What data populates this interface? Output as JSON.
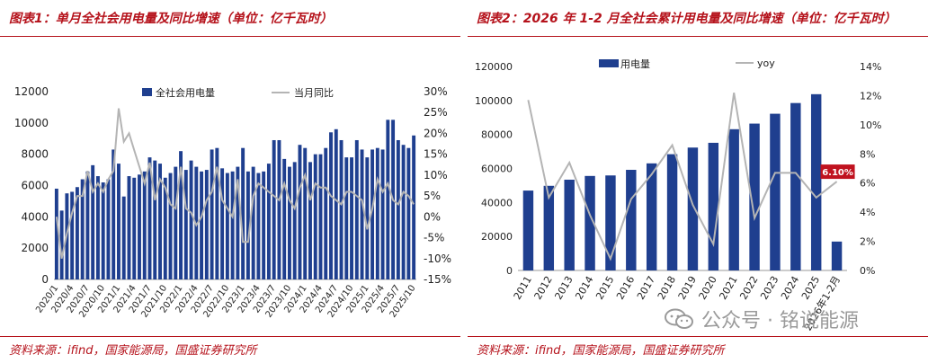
{
  "left_panel": {
    "title": "图表1：单月全社会用电量及同比增速（单位：亿千瓦时）",
    "source": "资料来源：ifind，国家能源局，国盛证券研究所"
  },
  "right_panel": {
    "title": "图表2：2026 年 1-2 月全社会累计用电量及同比增速（单位：亿千瓦时）",
    "source": "资料来源：ifind，国家能源局，国盛证券研究所"
  },
  "watermark": {
    "text": "公众号 · 铭说能源"
  },
  "colors": {
    "bar": "#1f3f8f",
    "line": "#b4b4b4",
    "accent": "#b5121b",
    "label_bg": "#c0121f"
  },
  "chart_data": [
    {
      "type": "bar",
      "combo_line": true,
      "legend": [
        "全社会用电量",
        "当月同比"
      ],
      "legend_position": "top",
      "categories": [
        "2020/1",
        "2020/2",
        "2020/3",
        "2020/4",
        "2020/5",
        "2020/6",
        "2020/7",
        "2020/8",
        "2020/9",
        "2020/10",
        "2020/11",
        "2020/12",
        "2021/1",
        "2021/2",
        "2021/3",
        "2021/4",
        "2021/5",
        "2021/6",
        "2021/7",
        "2021/8",
        "2021/9",
        "2021/10",
        "2021/11",
        "2021/12",
        "2022/1",
        "2022/2",
        "2022/3",
        "2022/4",
        "2022/5",
        "2022/6",
        "2022/7",
        "2022/8",
        "2022/9",
        "2022/10",
        "2022/11",
        "2022/12",
        "2023/1",
        "2023/2",
        "2023/3",
        "2023/4",
        "2023/5",
        "2023/6",
        "2023/7",
        "2023/8",
        "2023/9",
        "2023/10",
        "2023/11",
        "2023/12",
        "2024/1",
        "2024/2",
        "2024/3",
        "2024/4",
        "2024/5",
        "2024/6",
        "2024/7",
        "2024/8",
        "2024/9",
        "2024/10",
        "2024/11",
        "2024/12",
        "2025/1",
        "2025/2",
        "2025/3",
        "2025/4",
        "2025/5",
        "2025/6",
        "2025/7",
        "2025/8",
        "2025/9",
        "2025/10"
      ],
      "tick_labels": [
        "2020/1",
        "2020/4",
        "2020/7",
        "2020/10",
        "2021/1",
        "2021/4",
        "2021/7",
        "2021/10",
        "2022/1",
        "2022/4",
        "2022/7",
        "2022/10",
        "2023/1",
        "2023/4",
        "2023/7",
        "2023/10",
        "2024/1",
        "2024/4",
        "2024/7",
        "2024/10",
        "2025/1",
        "2025/4",
        "2025/7",
        "2025/10"
      ],
      "series": [
        {
          "name": "全社会用电量",
          "axis": "left",
          "values": [
            5800,
            4400,
            5500,
            5600,
            5900,
            6400,
            6900,
            7300,
            6600,
            6200,
            6400,
            8300,
            7400,
            5300,
            6600,
            6500,
            6700,
            6900,
            7800,
            7600,
            7400,
            6500,
            6800,
            7200,
            8200,
            7000,
            7600,
            7200,
            6900,
            7000,
            8300,
            8400,
            7100,
            6800,
            6900,
            7200,
            8400,
            6900,
            7200,
            6800,
            6900,
            7400,
            8900,
            8900,
            7700,
            7200,
            7500,
            8600,
            8400,
            7500,
            8000,
            8000,
            8400,
            9400,
            9600,
            8900,
            7800,
            7800,
            8900,
            8300,
            7800,
            8300,
            8400,
            8300,
            10200,
            10200,
            8900,
            8600,
            8400,
            9200
          ]
        },
        {
          "name": "当月同比",
          "axis": "right",
          "values": [
            0,
            -10,
            -4,
            1,
            5,
            5,
            11,
            6,
            8,
            6,
            9,
            11,
            26,
            18,
            20,
            16,
            12,
            8,
            13,
            4,
            9,
            7,
            3,
            2,
            12,
            2,
            1,
            -2,
            0,
            4,
            6,
            12,
            4,
            2,
            0,
            9,
            -6,
            -6,
            5,
            8,
            7,
            6,
            5,
            4,
            8,
            4,
            2,
            7,
            10,
            4,
            8,
            7,
            7,
            5,
            4,
            3,
            6,
            6,
            5,
            4,
            -3,
            2,
            9,
            6,
            8,
            4,
            3,
            6,
            5,
            3
          ]
        }
      ],
      "ylim": [
        0,
        12000
      ],
      "y_ticks": [
        0,
        2000,
        4000,
        6000,
        8000,
        10000,
        12000
      ],
      "y2lim": [
        -15,
        30
      ],
      "y2_ticks": [
        "-15%",
        "-10%",
        "-5%",
        "0%",
        "5%",
        "10%",
        "15%",
        "20%",
        "25%",
        "30%"
      ]
    },
    {
      "type": "bar",
      "combo_line": true,
      "legend": [
        "用电量",
        "yoy"
      ],
      "legend_position": "top",
      "categories": [
        "2011",
        "2012",
        "2013",
        "2014",
        "2015",
        "2016",
        "2017",
        "2018",
        "2019",
        "2020",
        "2021",
        "2022",
        "2023",
        "2024",
        "2025",
        "2026年1-2月"
      ],
      "series": [
        {
          "name": "用电量",
          "axis": "left",
          "values": [
            47000,
            49800,
            53400,
            55600,
            55900,
            59200,
            63000,
            68400,
            72300,
            75100,
            83100,
            86400,
            92200,
            98500,
            103700,
            17000
          ]
        },
        {
          "name": "yoy",
          "axis": "right",
          "values": [
            11.7,
            5.0,
            7.4,
            3.8,
            0.8,
            4.9,
            6.6,
            8.6,
            4.5,
            1.8,
            12.2,
            3.6,
            6.7,
            6.7,
            5.0,
            6.1
          ]
        }
      ],
      "data_label": {
        "text": "6.10%",
        "index": 15
      },
      "ylim": [
        0,
        120000
      ],
      "y_ticks": [
        0,
        20000,
        40000,
        60000,
        80000,
        100000,
        120000
      ],
      "y2lim": [
        0,
        14
      ],
      "y2_ticks": [
        "0%",
        "2%",
        "4%",
        "6%",
        "8%",
        "10%",
        "12%",
        "14%"
      ]
    }
  ]
}
